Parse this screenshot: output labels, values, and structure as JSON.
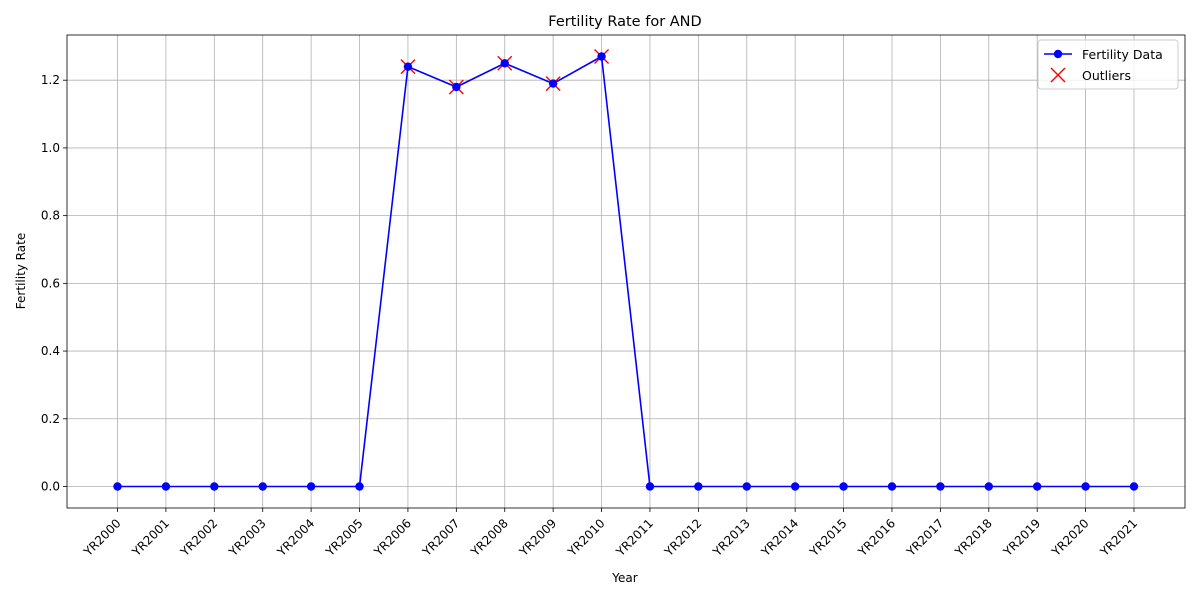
{
  "chart_data": {
    "type": "line",
    "title": "Fertility Rate for AND",
    "xlabel": "Year",
    "ylabel": "Fertility Rate",
    "categories": [
      "YR2000",
      "YR2001",
      "YR2002",
      "YR2003",
      "YR2004",
      "YR2005",
      "YR2006",
      "YR2007",
      "YR2008",
      "YR2009",
      "YR2010",
      "YR2011",
      "YR2012",
      "YR2013",
      "YR2014",
      "YR2015",
      "YR2016",
      "YR2017",
      "YR2018",
      "YR2019",
      "YR2020",
      "YR2021"
    ],
    "series": [
      {
        "name": "Fertility Data",
        "color": "#0000ff",
        "marker": "circle",
        "values": [
          0,
          0,
          0,
          0,
          0,
          0,
          1.24,
          1.18,
          1.25,
          1.19,
          1.27,
          0,
          0,
          0,
          0,
          0,
          0,
          0,
          0,
          0,
          0,
          0
        ]
      },
      {
        "name": "Outliers",
        "color": "#ff0000",
        "marker": "x",
        "points": [
          {
            "x": "YR2006",
            "y": 1.24
          },
          {
            "x": "YR2007",
            "y": 1.18
          },
          {
            "x": "YR2008",
            "y": 1.25
          },
          {
            "x": "YR2009",
            "y": 1.19
          },
          {
            "x": "YR2010",
            "y": 1.27
          }
        ]
      }
    ],
    "yticks": [
      "0.0",
      "0.2",
      "0.4",
      "0.6",
      "0.8",
      "1.0",
      "1.2"
    ],
    "ylim": [
      -0.0635,
      1.3335
    ],
    "grid": true,
    "legend_position": "top-right",
    "x_tick_rotation": 45
  }
}
